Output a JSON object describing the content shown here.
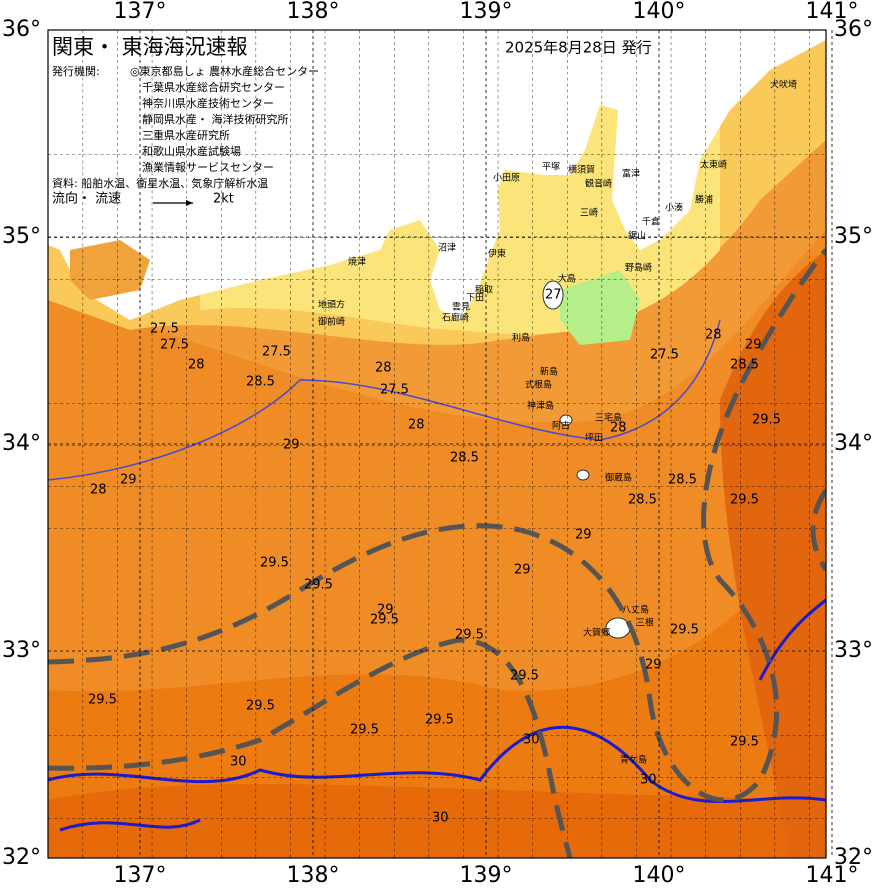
{
  "header": {
    "title": "関東・ 東海海況速報",
    "date": "2025年8月28日 発行"
  },
  "info": {
    "publisher_label": "発行機関:",
    "publishers": [
      "◎東京都島しょ 農林水産総合センター",
      "千葉県水産総合研究センター",
      "神奈川県水産技術センター",
      "静岡県水産・ 海洋技術研究所",
      "三重県水産研究所",
      "和歌山県水産試験場",
      "漁業情報サービスセンター"
    ],
    "source": "資料: 船舶水温、衛星水温、気象庁解析水温",
    "flow_label": "流向・ 流速",
    "flow_scale": "2kt"
  },
  "map": {
    "lon_ticks": [
      {
        "value": 137,
        "label": "137°"
      },
      {
        "value": 138,
        "label": "138°"
      },
      {
        "value": 139,
        "label": "139°"
      },
      {
        "value": 140,
        "label": "140°"
      },
      {
        "value": 141,
        "label": "141°"
      }
    ],
    "lat_ticks": [
      {
        "value": 36,
        "label": "36°"
      },
      {
        "value": 35,
        "label": "35°"
      },
      {
        "value": 34,
        "label": "34°"
      },
      {
        "value": 33,
        "label": "33°"
      },
      {
        "value": 32,
        "label": "32°"
      }
    ],
    "place_names": [
      "犬吠埼",
      "太東崎",
      "勝浦",
      "小湊",
      "千倉",
      "鋸山",
      "野島崎",
      "富津",
      "横須賀",
      "観音崎",
      "平塚",
      "小田原",
      "三崎",
      "伊東",
      "稲取",
      "下田",
      "雲見",
      "石廊崎",
      "沼津",
      "焼津",
      "地頭方",
      "御前崎",
      "大島",
      "利島",
      "新島",
      "式根島",
      "神津島",
      "三宅島",
      "阿古",
      "坪田",
      "御蔵島",
      "八丈島",
      "三根",
      "大賀郷",
      "青ケ島"
    ],
    "contour_labels": [
      "27.5",
      "28",
      "27.5",
      "28.5",
      "27.5",
      "28",
      "29",
      "28.5",
      "28",
      "29",
      "29.5",
      "29.5",
      "29",
      "29",
      "29",
      "28.5",
      "28.5",
      "29.5",
      "29.5",
      "29.5",
      "29",
      "29.5",
      "29.5",
      "29.5",
      "29.5",
      "29.5",
      "29.5",
      "30",
      "30",
      "30",
      "30",
      "27",
      "27.5",
      "27.5",
      "28",
      "28",
      "28.5",
      "29",
      "29.5",
      "28",
      "29.5"
    ]
  }
}
